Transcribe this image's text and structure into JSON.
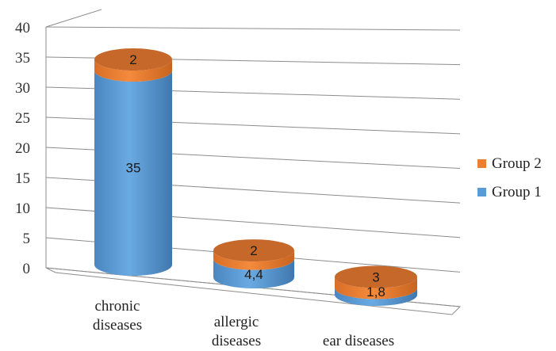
{
  "chart_data": {
    "type": "bar",
    "style": "3d-cylinder-stacked",
    "categories": [
      "chronic\ndiseases",
      "allergic\ndiseases",
      "ear diseases"
    ],
    "series": [
      {
        "name": "Group 1",
        "values": [
          35,
          4.4,
          1.8
        ],
        "labels": [
          "35",
          "4,4",
          "1,8"
        ],
        "color": "#5b9bd5"
      },
      {
        "name": "Group 2",
        "values": [
          2,
          2,
          3
        ],
        "labels": [
          "2",
          "2",
          "3"
        ],
        "color": "#ed7d31"
      }
    ],
    "yticks": [
      "0",
      "5",
      "10",
      "15",
      "20",
      "25",
      "30",
      "35",
      "40"
    ],
    "ylim": [
      0,
      40
    ],
    "grid": true,
    "legend": "right",
    "title": "",
    "xlabel": "",
    "ylabel": ""
  }
}
